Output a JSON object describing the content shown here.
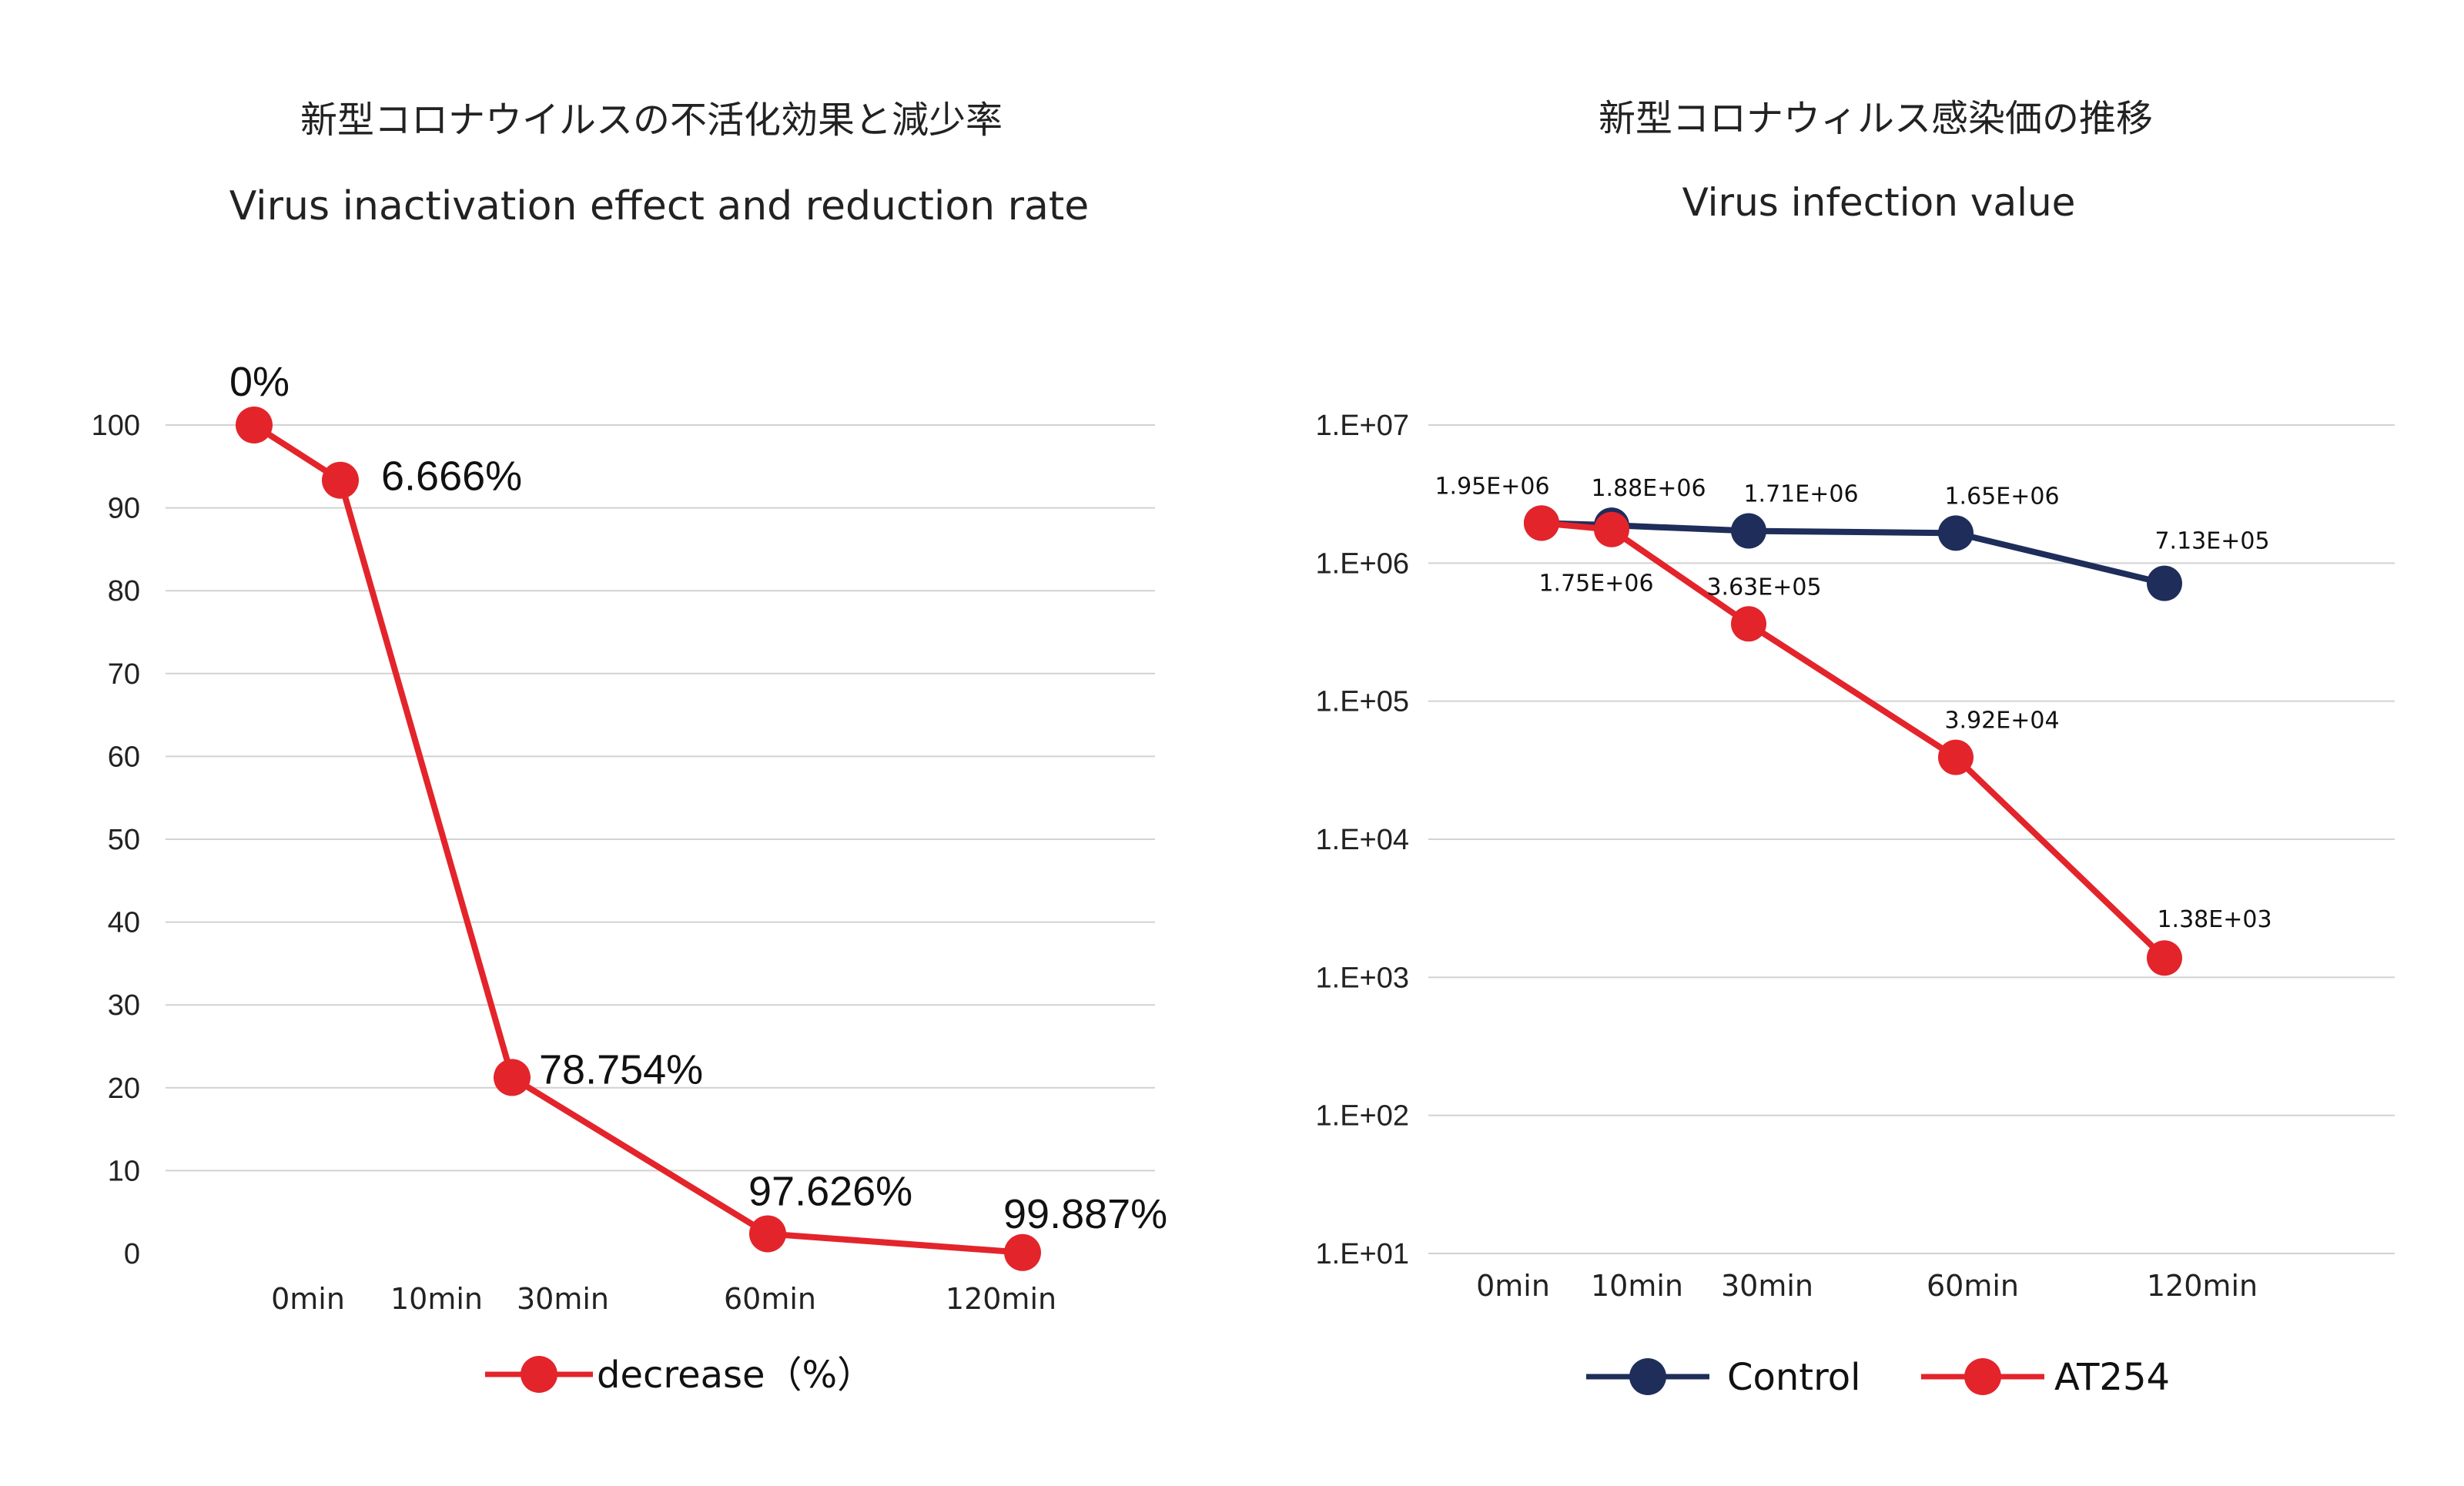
{
  "chart_data": [
    {
      "type": "line",
      "title_ja": "新型コロナウイルスの不活化効果と減少率",
      "title_en": "Virus inactivation effect and reduction rate",
      "categories": [
        "0min",
        "10min",
        "30min",
        "60min",
        "120min"
      ],
      "ylim": [
        0,
        100
      ],
      "yticks": [
        "100",
        "90",
        "80",
        "70",
        "60",
        "50",
        "40",
        "30",
        "20",
        "10",
        "0"
      ],
      "series": [
        {
          "name": "decrease（%）",
          "color": "#e3242b",
          "values": [
            100,
            93.334,
            21.246,
            2.374,
            0.113
          ],
          "labels": [
            "0%",
            "6.666%",
            "78.754%",
            "97.626%",
            "99.887%"
          ]
        }
      ],
      "legend_position": "bottom"
    },
    {
      "type": "line",
      "y_scale": "log",
      "title_ja": "新型コロナウィルス感染価の推移",
      "title_en": "Virus infection value",
      "categories": [
        "0min",
        "10min",
        "30min",
        "60min",
        "120min"
      ],
      "ylim": [
        10,
        10000000
      ],
      "yticks": [
        "1.E+07",
        "1.E+06",
        "1.E+05",
        "1.E+04",
        "1.E+03",
        "1.E+02",
        "1.E+01"
      ],
      "series": [
        {
          "name": "Control",
          "color": "#1f2d5a",
          "values": [
            1950000,
            1880000,
            1710000,
            1650000,
            713000
          ],
          "labels": [
            "1.95E+06",
            "1.88E+06",
            "1.71E+06",
            "1.65E+06",
            "7.13E+05"
          ]
        },
        {
          "name": "AT254",
          "color": "#e3242b",
          "values": [
            1950000,
            1750000,
            363000,
            39200,
            1380
          ],
          "labels": [
            "",
            "1.75E+06",
            "3.63E+05",
            "3.92E+04",
            "1.38E+03"
          ]
        }
      ],
      "legend_position": "bottom"
    }
  ]
}
